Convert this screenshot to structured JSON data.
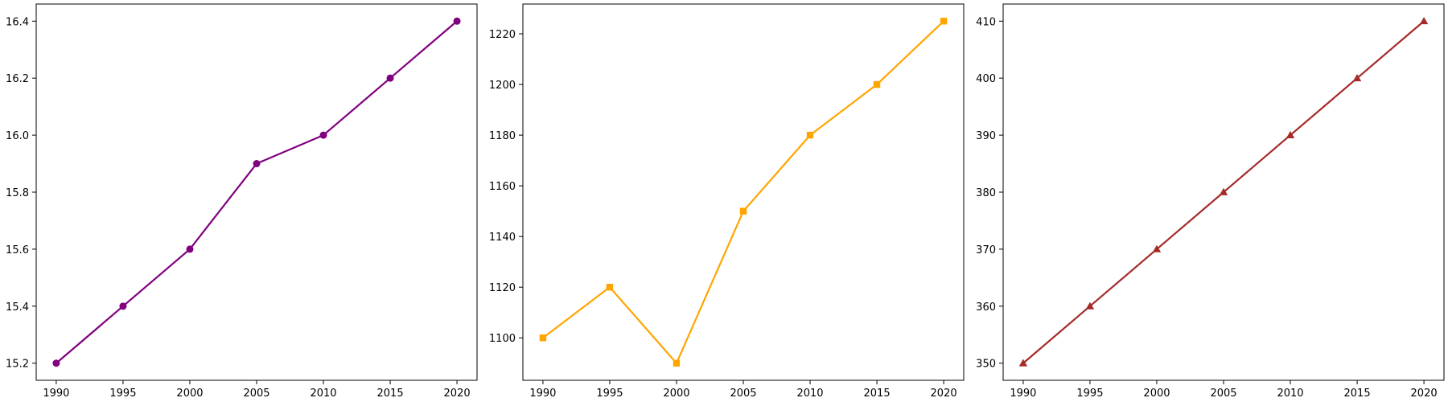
{
  "chart_data": [
    {
      "type": "line",
      "x": [
        1990,
        1995,
        2000,
        2005,
        2010,
        2015,
        2020
      ],
      "series": [
        {
          "values": [
            15.2,
            15.4,
            15.6,
            15.9,
            16.0,
            16.2,
            16.4
          ],
          "color": "#800080",
          "marker": "circle"
        }
      ],
      "xticks": [
        1990,
        1995,
        2000,
        2005,
        2010,
        2015,
        2020
      ],
      "yticks": [
        "15.2",
        "15.4",
        "15.6",
        "15.8",
        "16.0",
        "16.2",
        "16.4"
      ],
      "xlim": [
        1988.5,
        2021.5
      ],
      "ylim": [
        15.14,
        16.46
      ],
      "title": "",
      "xlabel": "",
      "ylabel": "",
      "grid": false
    },
    {
      "type": "line",
      "x": [
        1990,
        1995,
        2000,
        2005,
        2010,
        2015,
        2020
      ],
      "series": [
        {
          "values": [
            1100,
            1120,
            1090,
            1150,
            1180,
            1200,
            1225
          ],
          "color": "#FFA500",
          "marker": "square"
        }
      ],
      "xticks": [
        1990,
        1995,
        2000,
        2005,
        2010,
        2015,
        2020
      ],
      "yticks": [
        "1100",
        "1120",
        "1140",
        "1160",
        "1180",
        "1200",
        "1220"
      ],
      "xlim": [
        1988.5,
        2021.5
      ],
      "ylim": [
        1083.25,
        1231.75
      ],
      "title": "",
      "xlabel": "",
      "ylabel": "",
      "grid": false
    },
    {
      "type": "line",
      "x": [
        1990,
        1995,
        2000,
        2005,
        2010,
        2015,
        2020
      ],
      "series": [
        {
          "values": [
            350,
            360,
            370,
            380,
            390,
            400,
            410
          ],
          "color": "#A52A2A",
          "marker": "triangle"
        }
      ],
      "xticks": [
        1990,
        1995,
        2000,
        2005,
        2010,
        2015,
        2020
      ],
      "yticks": [
        "350",
        "360",
        "370",
        "380",
        "390",
        "400",
        "410"
      ],
      "xlim": [
        1988.5,
        2021.5
      ],
      "ylim": [
        347,
        413
      ],
      "title": "",
      "xlabel": "",
      "ylabel": "",
      "grid": false
    }
  ]
}
